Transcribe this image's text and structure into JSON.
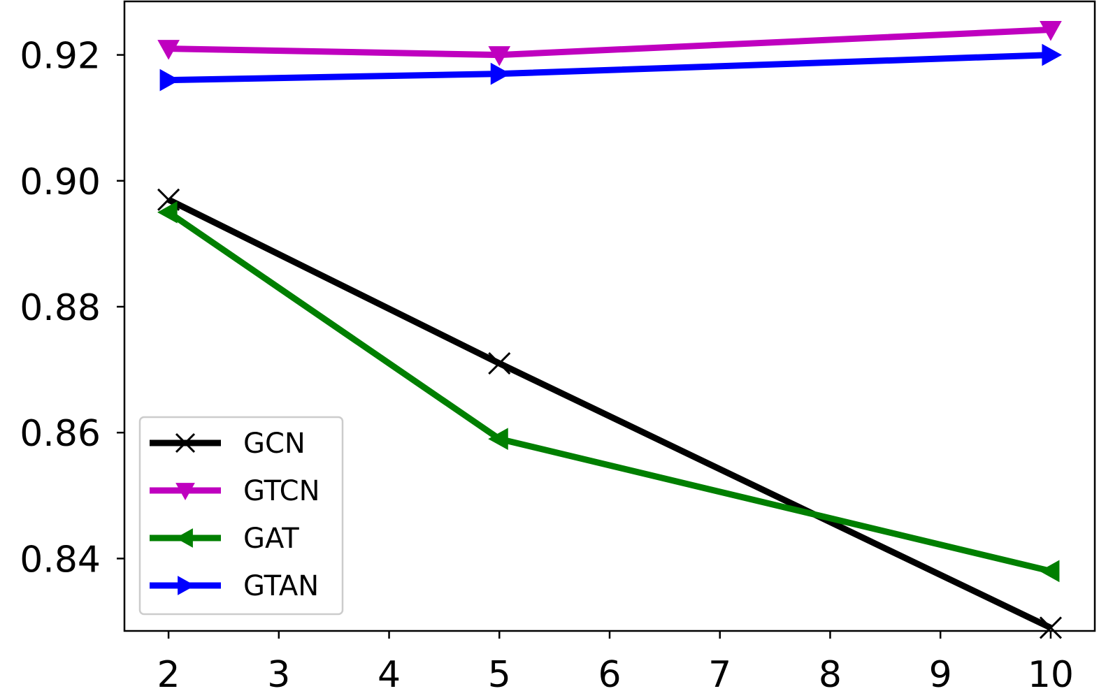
{
  "chart_data": {
    "type": "line",
    "title": "",
    "xlabel": "",
    "ylabel": "",
    "x": [
      2,
      5,
      10
    ],
    "xlim": [
      1.6,
      10.4
    ],
    "ylim": [
      0.8285,
      0.9285
    ],
    "x_ticks": [
      2,
      3,
      4,
      5,
      6,
      7,
      8,
      9,
      10
    ],
    "x_tick_labels": [
      "2",
      "3",
      "4",
      "5",
      "6",
      "7",
      "8",
      "9",
      "10"
    ],
    "y_ticks": [
      0.84,
      0.86,
      0.88,
      0.9,
      0.92
    ],
    "y_tick_labels": [
      "0.84",
      "0.86",
      "0.88",
      "0.90",
      "0.92"
    ],
    "grid": false,
    "legend_position": "lower-left",
    "series": [
      {
        "name": "GCN",
        "values": [
          0.897,
          0.871,
          0.829
        ],
        "color": "#000000",
        "marker": "x"
      },
      {
        "name": "GTCN",
        "values": [
          0.921,
          0.92,
          0.924
        ],
        "color": "#bf00bf",
        "marker": "triangle-down"
      },
      {
        "name": "GAT",
        "values": [
          0.895,
          0.859,
          0.838
        ],
        "color": "#007f00",
        "marker": "triangle-left"
      },
      {
        "name": "GTAN",
        "values": [
          0.916,
          0.917,
          0.92
        ],
        "color": "#0000ff",
        "marker": "triangle-right"
      }
    ]
  }
}
